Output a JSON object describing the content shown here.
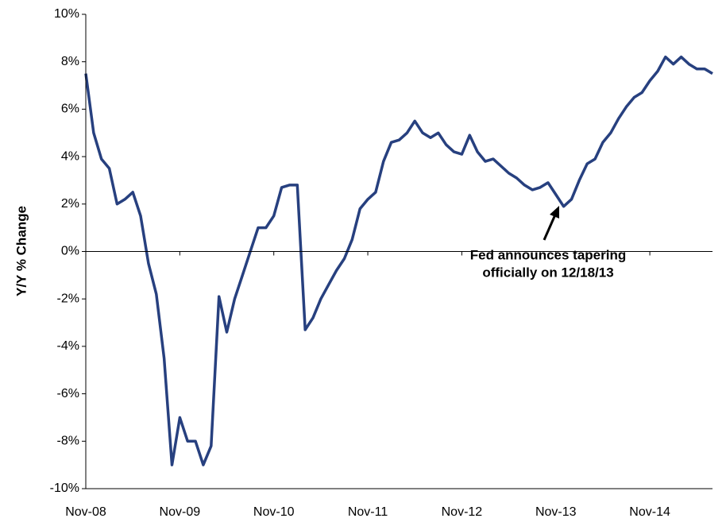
{
  "chart_data": {
    "type": "line",
    "y_label": "Y/Y % Change",
    "annotation": [
      "Fed announces tapering",
      "officially on 12/18/13"
    ],
    "categories": [
      "Nov-08",
      null,
      null,
      null,
      null,
      null,
      null,
      null,
      null,
      null,
      null,
      null,
      "Nov-09",
      null,
      null,
      null,
      null,
      null,
      null,
      null,
      null,
      null,
      null,
      null,
      "Nov-10",
      null,
      null,
      null,
      null,
      null,
      null,
      null,
      null,
      null,
      null,
      null,
      "Nov-11",
      null,
      null,
      null,
      null,
      null,
      null,
      null,
      null,
      null,
      null,
      null,
      "Nov-12",
      null,
      null,
      null,
      null,
      null,
      null,
      null,
      null,
      null,
      null,
      null,
      "Nov-13",
      null,
      null,
      null,
      null,
      null,
      null,
      null,
      null,
      null,
      null,
      null,
      "Nov-14",
      null,
      null,
      null,
      null,
      null,
      null,
      null,
      null
    ],
    "series": [
      {
        "color": "#27407f",
        "values": [
          7.5,
          5.0,
          3.9,
          3.5,
          2.0,
          2.2,
          2.5,
          1.5,
          -0.5,
          -1.8,
          -4.5,
          -9.0,
          -7.0,
          -8.0,
          -8.0,
          -9.0,
          -8.2,
          -1.9,
          -3.4,
          -2.0,
          -1.0,
          0.0,
          1.0,
          1.0,
          1.5,
          2.7,
          2.8,
          2.8,
          -3.3,
          -2.8,
          -2.0,
          -1.4,
          -0.8,
          -0.3,
          0.5,
          1.8,
          2.2,
          2.5,
          3.8,
          4.6,
          4.7,
          5.0,
          5.5,
          5.0,
          4.8,
          5.0,
          4.5,
          4.2,
          4.1,
          4.9,
          4.2,
          3.8,
          3.9,
          3.6,
          3.3,
          3.1,
          2.8,
          2.6,
          2.7,
          2.9,
          2.4,
          1.9,
          2.2,
          3.0,
          3.7,
          3.9,
          4.6,
          5.0,
          5.6,
          6.1,
          6.5,
          6.7,
          7.2,
          7.6,
          8.2,
          7.9,
          8.2,
          7.9,
          7.7,
          7.7,
          7.5
        ]
      }
    ],
    "ylim": [
      -10,
      10
    ],
    "yticks": [
      {
        "value": -10,
        "label": "-10%"
      },
      {
        "value": -8,
        "label": "-8%"
      },
      {
        "value": -6,
        "label": "-6%"
      },
      {
        "value": -4,
        "label": "-4%"
      },
      {
        "value": -2,
        "label": "-2%"
      },
      {
        "value": 0,
        "label": "0%"
      },
      {
        "value": 2,
        "label": "2%"
      },
      {
        "value": 4,
        "label": "4%"
      },
      {
        "value": 6,
        "label": "6%"
      },
      {
        "value": 8,
        "label": "8%"
      },
      {
        "value": 10,
        "label": "10%"
      }
    ],
    "grid": false
  }
}
